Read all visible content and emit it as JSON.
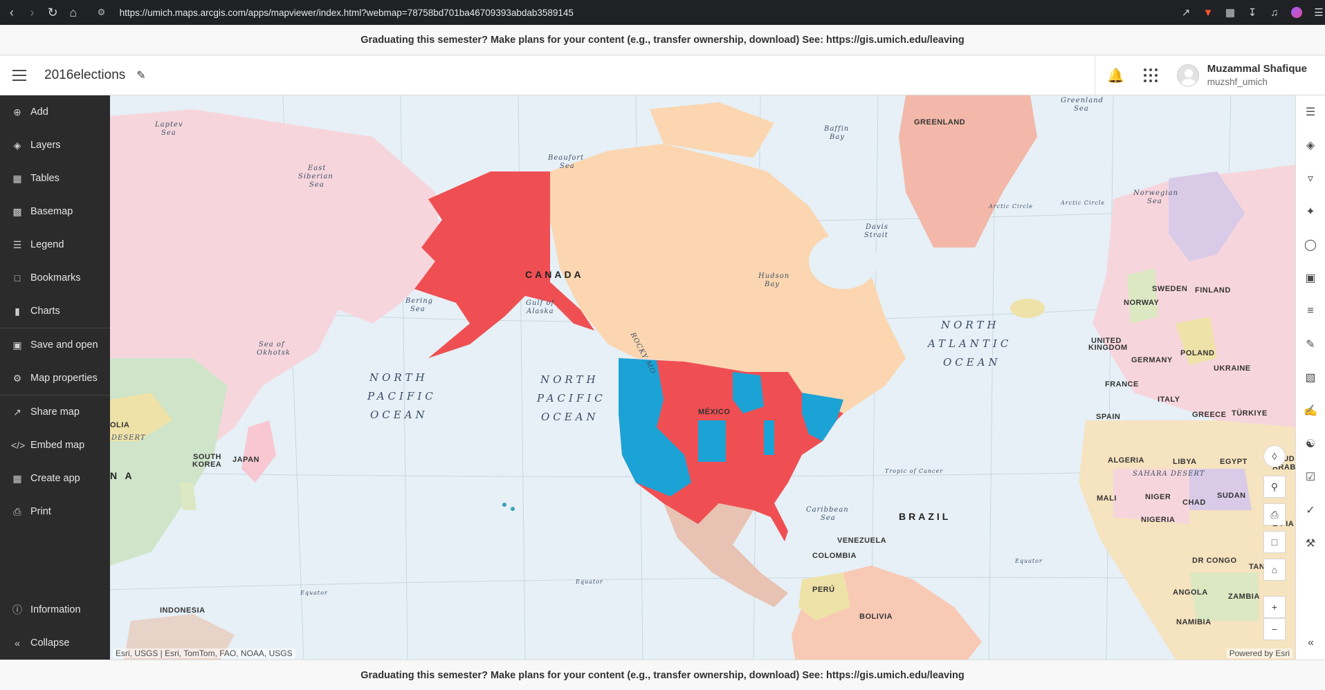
{
  "browser": {
    "url": "https://umich.maps.arcgis.com/apps/mapviewer/index.html?webmap=78758bd701ba46709393abdab3589145"
  },
  "banner": {
    "text": "Graduating this semester? Make plans for your content (e.g., transfer ownership, download) See: https://gis.umich.edu/leaving"
  },
  "header": {
    "title": "2016elections",
    "user_name": "Muzammal Shafique",
    "user_handle": "muzshf_umich"
  },
  "sidebar": {
    "items": [
      {
        "label": "Add",
        "icon": "add-icon"
      },
      {
        "label": "Layers",
        "icon": "layers-icon"
      },
      {
        "label": "Tables",
        "icon": "table-icon"
      },
      {
        "label": "Basemap",
        "icon": "basemap-icon"
      },
      {
        "label": "Legend",
        "icon": "legend-icon"
      },
      {
        "label": "Bookmarks",
        "icon": "bookmark-icon"
      },
      {
        "label": "Charts",
        "icon": "chart-icon"
      },
      {
        "label": "Save and open",
        "icon": "save-icon"
      },
      {
        "label": "Map properties",
        "icon": "gear-icon"
      },
      {
        "label": "Share map",
        "icon": "share-icon"
      },
      {
        "label": "Embed map",
        "icon": "code-icon"
      },
      {
        "label": "Create app",
        "icon": "apps-icon"
      },
      {
        "label": "Print",
        "icon": "print-icon"
      }
    ],
    "bottom": {
      "information": "Information",
      "collapse": "Collapse"
    }
  },
  "map": {
    "attribution_left": "Esri, USGS | Esri, TomTom, FAO, NOAA, USGS",
    "attribution_right": "Powered by Esri",
    "labels": {
      "canada": "CANADA",
      "greenland": "GREENLAND",
      "mexico": "MÉXICO",
      "brazil": "BRAZIL",
      "nap_left": [
        "NORTH",
        "PACIFIC",
        "OCEAN"
      ],
      "nap_mid": [
        "NORTH",
        "PACIFIC",
        "OCEAN"
      ],
      "natl": [
        "NORTH",
        "ATLANTIC",
        "OCEAN"
      ],
      "laptev": [
        "Laptev",
        "Sea"
      ],
      "east_siberian": [
        "East",
        "Siberian",
        "Sea"
      ],
      "beaufort": [
        "Beaufort",
        "Sea"
      ],
      "baffin": [
        "Baffin",
        "Bay"
      ],
      "greenland_sea": [
        "Greenland",
        "Sea"
      ],
      "norwegian": [
        "Norwegian",
        "Sea"
      ],
      "bering": [
        "Bering",
        "Sea"
      ],
      "gulf_alaska": [
        "Gulf of",
        "Alaska"
      ],
      "hudson": [
        "Hudson",
        "Bay"
      ],
      "davis": [
        "Davis",
        "Strait"
      ],
      "okhotsk": [
        "Sea of",
        "Okhotsk"
      ],
      "caribbean": [
        "Caribbean",
        "Sea"
      ],
      "rocky": "ROCKY MO",
      "japan": "JAPAN",
      "south_korea": [
        "SOUTH",
        "KOREA"
      ],
      "indonesia": "INDONESIA",
      "olia": "OLIA",
      "desert": "DESERT",
      "na": "N A",
      "sweden": "SWEDEN",
      "finland": "FINLAND",
      "norway": "NORWAY",
      "uk": [
        "UNITED",
        "KINGDOM"
      ],
      "poland": "POLAND",
      "germany": "GERMANY",
      "ukraine": "UKRAINE",
      "france": "FRANCE",
      "italy": "ITALY",
      "spain": "SPAIN",
      "greece": "GREECE",
      "turkiye": "TÜRKIYE",
      "algeria": "ALGERIA",
      "libya": "LIBYA",
      "egypt": "EGYPT",
      "saudi": [
        "SAUD",
        "ARAB"
      ],
      "sahara": "SAHARA DESERT",
      "mali": "MALI",
      "niger": "NIGER",
      "chad": "CHAD",
      "sudan": "SUDAN",
      "nigeria": "NIGERIA",
      "ethiopia": "E PIA",
      "venezuela": "VENEZUELA",
      "colombia": "COLOMBIA",
      "peru": "PERÚ",
      "bolivia": "BOLIVIA",
      "drc": "DR CONGO",
      "tanz": "TANZ.",
      "angola": "ANGOLA",
      "zambia": "ZAMBIA",
      "namibia": "NAMIBIA",
      "arctic1": "Arctic Circle",
      "arctic2": "Arctic Circle",
      "tropic": "Tropic of Cancer",
      "equator1": "Equator",
      "equator2": "Equator",
      "equator3": "Equator"
    },
    "colors": {
      "republican": "#ef4f53",
      "democrat": "#1ba3d6",
      "ocean": "#e6f0f6",
      "canada": "#fbd6b0"
    }
  },
  "map_controls": [
    "compass-icon",
    "search-icon",
    "print-icon",
    "comment-icon",
    "home-icon",
    "zoom-in-icon",
    "zoom-out-icon"
  ],
  "right_tools": [
    "properties-icon",
    "styles-icon",
    "filter-icon",
    "effects-icon",
    "pop-ups-icon",
    "fields-icon",
    "labels-icon",
    "sketch-icon",
    "measure-icon",
    "edit-icon",
    "analysis-icon",
    "directions-icon",
    "find-icon",
    "tools-icon",
    "collapse-right-icon"
  ]
}
